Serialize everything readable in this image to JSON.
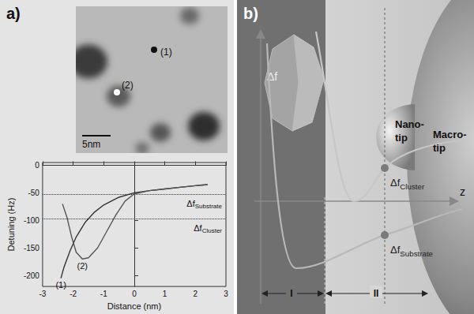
{
  "panel_a": {
    "label": "a)",
    "image": {
      "points": [
        {
          "label": "(1)"
        },
        {
          "label": "(2)"
        }
      ],
      "scale_bar": "5nm"
    }
  },
  "chart_data": {
    "type": "line",
    "x_label": "Distance (nm)",
    "y_label": "Detuning (Hz)",
    "xlim": [
      -3,
      3
    ],
    "xticks": [
      -3,
      -2,
      -1,
      0,
      1,
      2,
      3
    ],
    "ylim": [
      -220,
      5
    ],
    "yticks": [
      -200,
      -150,
      -100,
      -50,
      0
    ],
    "grid": false,
    "series": [
      {
        "name": "(1)",
        "color": "#333333",
        "x": [
          2.4,
          2.0,
          1.5,
          1.0,
          0.5,
          0.0,
          -0.5,
          -1.0,
          -1.3,
          -1.6,
          -1.9,
          -2.1,
          -2.3,
          -2.4
        ],
        "values": [
          -35,
          -37,
          -40,
          -43,
          -46,
          -50,
          -58,
          -72,
          -85,
          -103,
          -130,
          -155,
          -185,
          -205
        ]
      },
      {
        "name": "(2)",
        "color": "#555555",
        "x": [
          2.4,
          2.0,
          1.5,
          1.0,
          0.5,
          0.0,
          -0.3,
          -0.6,
          -0.9,
          -1.2,
          -1.5,
          -1.7,
          -1.9,
          -2.05,
          -2.2,
          -2.35
        ],
        "values": [
          -35,
          -37,
          -40,
          -43,
          -46,
          -52,
          -65,
          -90,
          -120,
          -150,
          -168,
          -170,
          -158,
          -130,
          -95,
          -70
        ]
      }
    ],
    "reference_lines": [
      {
        "label": "Δf",
        "subscript": "Substrate",
        "value": -53
      },
      {
        "label": "Δf",
        "subscript": "Cluster",
        "value": -97
      }
    ]
  },
  "panel_b": {
    "label": "b)",
    "y_axis_label": "Δf",
    "z_axis_label": "z",
    "nano_tip": "Nano-tip",
    "macro_tip": "Macro-tip",
    "points": [
      {
        "label": "Δf",
        "subscript": "Cluster"
      },
      {
        "label": "Δf",
        "subscript": "Substrate"
      }
    ],
    "regions": [
      "I",
      "II"
    ]
  }
}
